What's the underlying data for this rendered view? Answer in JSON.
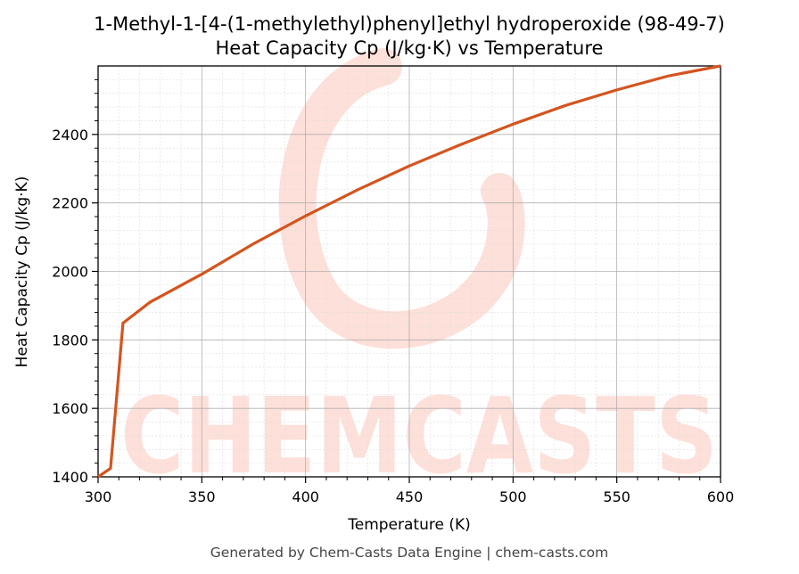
{
  "chart_data": {
    "type": "line",
    "title": "1-Methyl-1-[4-(1-methylethyl)phenyl]ethyl hydroperoxide (98-49-7)",
    "subtitle": "Heat Capacity Cp (J/kg·K) vs Temperature",
    "xlabel": "Temperature (K)",
    "ylabel": "Heat Capacity Cp (J/kg·K)",
    "xlim": [
      300,
      600
    ],
    "ylim": [
      1400,
      2600
    ],
    "xticks": [
      300,
      350,
      400,
      450,
      500,
      550,
      600
    ],
    "yticks": [
      1400,
      1600,
      1800,
      2000,
      2200,
      2400
    ],
    "grid": true,
    "series": [
      {
        "color": "#d4541f",
        "x": [
          300,
          306,
          312,
          325,
          350,
          375,
          400,
          425,
          450,
          475,
          500,
          525,
          550,
          575,
          600
        ],
        "y": [
          1400,
          1425,
          1849,
          1910,
          1992,
          2081,
          2162,
          2238,
          2308,
          2371,
          2430,
          2484,
          2530,
          2571,
          2600
        ]
      }
    ]
  },
  "footer": "Generated by Chem-Casts Data Engine | chem-casts.com",
  "watermark": "CHEMCASTS",
  "colors": {
    "line": "#d4541f",
    "watermark": "#fde0d9",
    "grid_major": "#b0b0b0",
    "grid_minor": "#dddddd"
  }
}
